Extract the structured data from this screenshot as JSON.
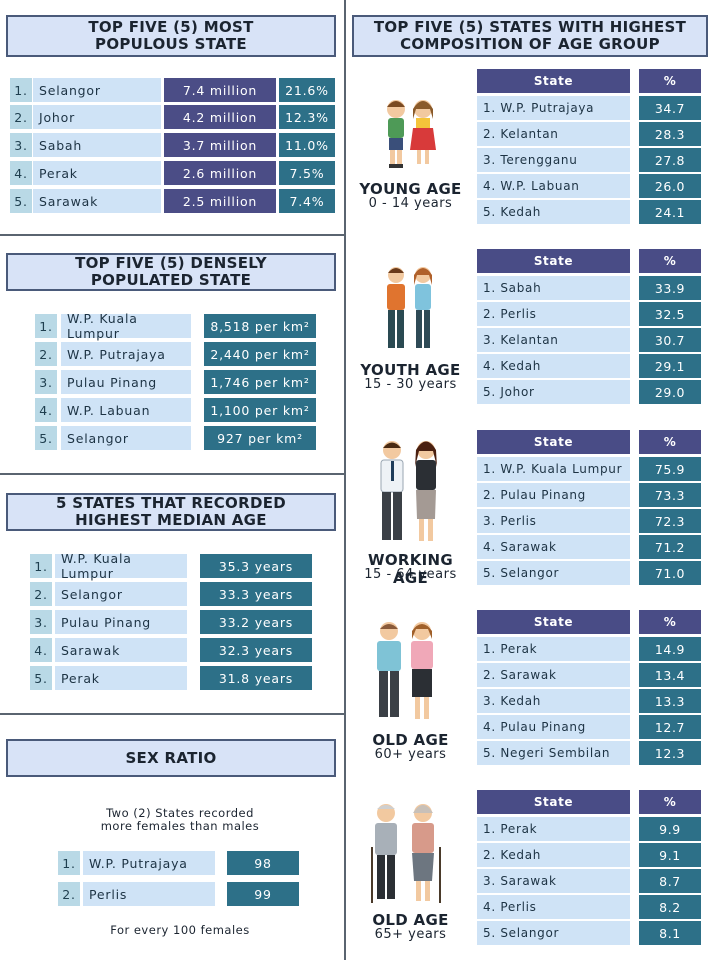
{
  "populous": {
    "title1": "TOP FIVE (5) MOST",
    "title2": "POPULOUS STATE",
    "rows": [
      {
        "n": "1.",
        "state": "Selangor",
        "pop": "7.4 million",
        "pct": "21.6%"
      },
      {
        "n": "2.",
        "state": "Johor",
        "pop": "4.2 million",
        "pct": "12.3%"
      },
      {
        "n": "3.",
        "state": "Sabah",
        "pop": "3.7 million",
        "pct": "11.0%"
      },
      {
        "n": "4.",
        "state": "Perak",
        "pop": "2.6 million",
        "pct": "7.5%"
      },
      {
        "n": "5.",
        "state": "Sarawak",
        "pop": "2.5 million",
        "pct": "7.4%"
      }
    ]
  },
  "dense": {
    "title1": "TOP FIVE (5) DENSELY",
    "title2": "POPULATED STATE",
    "unit": "per km²",
    "rows": [
      {
        "n": "1.",
        "state": "W.P. Kuala Lumpur",
        "val": "8,518 per km²"
      },
      {
        "n": "2.",
        "state": "W.P. Putrajaya",
        "val": "2,440 per km²"
      },
      {
        "n": "3.",
        "state": "Pulau Pinang",
        "val": "1,746 per km²"
      },
      {
        "n": "4.",
        "state": "W.P. Labuan",
        "val": "1,100 per km²"
      },
      {
        "n": "5.",
        "state": "Selangor",
        "val": "927 per km²"
      }
    ]
  },
  "median": {
    "title1": "5 STATES THAT RECORDED",
    "title2": "HIGHEST MEDIAN AGE",
    "rows": [
      {
        "n": "1.",
        "state": "W.P. Kuala Lumpur",
        "val": "35.3 years"
      },
      {
        "n": "2.",
        "state": "Selangor",
        "val": "33.3 years"
      },
      {
        "n": "3.",
        "state": "Pulau Pinang",
        "val": "33.2 years"
      },
      {
        "n": "4.",
        "state": "Sarawak",
        "val": "32.3 years"
      },
      {
        "n": "5.",
        "state": "Perak",
        "val": "31.8 years"
      }
    ]
  },
  "sex": {
    "title": "SEX RATIO",
    "note1": "Two (2) States recorded",
    "note2": "more females than males",
    "rows": [
      {
        "n": "1.",
        "state": "W.P. Putrajaya",
        "val": "98"
      },
      {
        "n": "2.",
        "state": "Perlis",
        "val": "99"
      }
    ],
    "footer": "For every 100 females"
  },
  "age": {
    "title1": "TOP FIVE (5) STATES WITH HIGHEST",
    "title2": "COMPOSITION OF AGE GROUP",
    "col_state": "State",
    "col_pct": "%",
    "groups": [
      {
        "label": "YOUNG AGE",
        "range": "0 - 14 years",
        "rows": [
          {
            "state": "1. W.P. Putrajaya",
            "val": "34.7"
          },
          {
            "state": "2. Kelantan",
            "val": "28.3"
          },
          {
            "state": "3. Terengganu",
            "val": "27.8"
          },
          {
            "state": "4. W.P. Labuan",
            "val": "26.0"
          },
          {
            "state": "5. Kedah",
            "val": "24.1"
          }
        ]
      },
      {
        "label": "YOUTH AGE",
        "range": "15 - 30 years",
        "rows": [
          {
            "state": "1. Sabah",
            "val": "33.9"
          },
          {
            "state": "2. Perlis",
            "val": "32.5"
          },
          {
            "state": "3. Kelantan",
            "val": "30.7"
          },
          {
            "state": "4. Kedah",
            "val": "29.1"
          },
          {
            "state": "5. Johor",
            "val": "29.0"
          }
        ]
      },
      {
        "label": "WORKING AGE",
        "range": "15 - 64 years",
        "rows": [
          {
            "state": "1. W.P. Kuala Lumpur",
            "val": "75.9"
          },
          {
            "state": "2. Pulau Pinang",
            "val": "73.3"
          },
          {
            "state": "3. Perlis",
            "val": "72.3"
          },
          {
            "state": "4. Sarawak",
            "val": "71.2"
          },
          {
            "state": "5. Selangor",
            "val": "71.0"
          }
        ]
      },
      {
        "label": "OLD AGE",
        "range": "60+ years",
        "rows": [
          {
            "state": "1. Perak",
            "val": "14.9"
          },
          {
            "state": "2. Sarawak",
            "val": "13.4"
          },
          {
            "state": "3. Kedah",
            "val": "13.3"
          },
          {
            "state": "4. Pulau Pinang",
            "val": "12.7"
          },
          {
            "state": "5. Negeri Sembilan",
            "val": "12.3"
          }
        ]
      },
      {
        "label": "OLD AGE",
        "range": "65+ years",
        "rows": [
          {
            "state": "1. Perak",
            "val": "9.9"
          },
          {
            "state": "2. Kedah",
            "val": "9.1"
          },
          {
            "state": "3. Sarawak",
            "val": "8.7"
          },
          {
            "state": "4. Perlis",
            "val": "8.2"
          },
          {
            "state": "5. Selangor",
            "val": "8.1"
          }
        ]
      }
    ]
  }
}
